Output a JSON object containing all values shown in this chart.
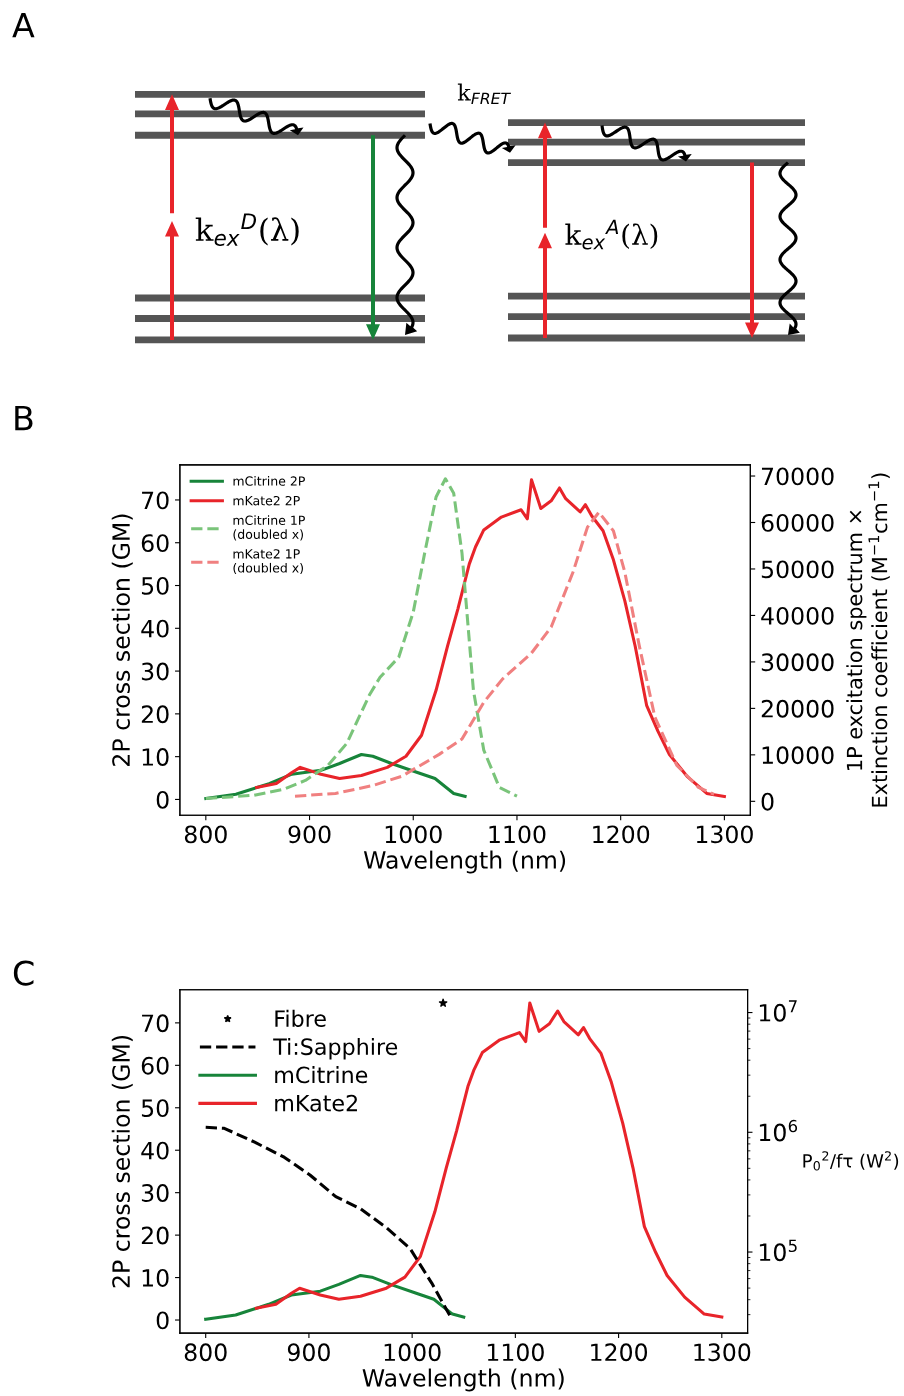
{
  "chart_data": [
    {
      "type": "other",
      "title": "A",
      "annotations": [
        "k$_{FRET}$",
        "k$_{ex}$$^{D}$(λ)",
        "k$_{ex}$$^{A}$(λ)"
      ]
    },
    {
      "type": "line",
      "title": "B",
      "xlabel": "Wavelength (nm)",
      "ylabel": "2P cross section (GM)",
      "y2label": "1P excitation spectrum ×\nExtinction coefficient (M$^{−1}$cm$^{−1}$)",
      "xlim": [
        775,
        1325
      ],
      "xticks": [
        800,
        900,
        1000,
        1100,
        1200,
        1300
      ],
      "ylim": [
        -3.7,
        78.2
      ],
      "yticks": [
        0,
        10,
        20,
        30,
        40,
        50,
        60,
        70
      ],
      "y2lim": [
        -3000,
        72400
      ],
      "y2ticks": [
        0,
        10000,
        20000,
        30000,
        40000,
        50000,
        60000,
        70000
      ],
      "legend": "top left",
      "series": [
        {
          "name": "mCitrine 2P",
          "color": "#17843a",
          "line_style": "solid",
          "x": [
            800,
            829,
            861,
            883,
            911,
            929,
            950,
            961,
            979,
            1004,
            1021,
            1039,
            1050
          ],
          "values": [
            0.2,
            1.2,
            3.7,
            5.9,
            6.8,
            8.4,
            10.5,
            10.1,
            8.4,
            6.3,
            4.9,
            1.4,
            0.7
          ]
        },
        {
          "name": "mKate2 2P",
          "color": "#e8242a",
          "line_style": "solid",
          "x": [
            849,
            868,
            883,
            891,
            911,
            929,
            950,
            975,
            993,
            1008,
            1022,
            1033,
            1043,
            1054,
            1060,
            1068,
            1085,
            1104,
            1110,
            1114,
            1123,
            1133,
            1141,
            1147,
            1161,
            1166,
            1172,
            1183,
            1193,
            1204,
            1214,
            1225,
            1236,
            1247,
            1264,
            1283,
            1300
          ],
          "values": [
            2.8,
            3.7,
            6.3,
            7.5,
            5.9,
            4.9,
            5.6,
            7.5,
            10.1,
            15,
            25.5,
            35.8,
            44.5,
            55,
            59,
            63,
            66,
            67.7,
            65.6,
            74.7,
            68,
            69.8,
            72.8,
            70.3,
            67.2,
            68.9,
            66.3,
            62.8,
            56,
            46.4,
            35.8,
            22,
            15.9,
            10.5,
            5.4,
            1.4,
            0.7
          ]
        },
        {
          "name": "mCitrine 1P\n(doubled x)",
          "color": "#7ac47a",
          "line_style": "dashed",
          "axis": "y2",
          "x": [
            800,
            846,
            875,
            896,
            918,
            936,
            958,
            968,
            986,
            1000,
            1011,
            1022,
            1031,
            1039,
            1047,
            1058,
            1068,
            1083,
            1100
          ],
          "values": [
            600,
            1300,
            2600,
            4500,
            7800,
            12500,
            23000,
            26700,
            31000,
            40700,
            53400,
            65500,
            69400,
            66300,
            53400,
            23900,
            11000,
            3000,
            1100
          ]
        },
        {
          "name": "mKate2 1P\n(doubled x)",
          "color": "#f08080",
          "line_style": "dashed",
          "axis": "y2",
          "x": [
            886,
            925,
            961,
            989,
            1025,
            1047,
            1068,
            1086,
            1114,
            1133,
            1154,
            1168,
            1179,
            1193,
            1204,
            1218,
            1233,
            1254,
            1275,
            1290
          ],
          "values": [
            1100,
            1700,
            3400,
            5400,
            10100,
            13400,
            21300,
            26300,
            31900,
            37500,
            49300,
            59000,
            62200,
            58200,
            49300,
            33400,
            18100,
            7800,
            3000,
            1500
          ]
        }
      ]
    },
    {
      "type": "line",
      "title": "C",
      "xlabel": "Wavelength (nm)",
      "ylabel": "2P cross section (GM)",
      "y2label": "P$_{0}$$^{2}$/fτ (W$^{2}$)",
      "xlim": [
        775,
        1325
      ],
      "xticks": [
        800,
        900,
        1000,
        1100,
        1200,
        1300
      ],
      "ylim": [
        -3.1,
        77.8
      ],
      "yticks": [
        0,
        10,
        20,
        30,
        40,
        50,
        60,
        70
      ],
      "log": "y2",
      "y2lim": [
        21000,
        15500000
      ],
      "y2ticks": [
        {
          "value": 100000,
          "label": "10$^{5}$"
        },
        {
          "value": 1000000,
          "label": "10$^{6}$"
        },
        {
          "value": 10000000,
          "label": "10$^{7}$"
        }
      ],
      "legend": "top left",
      "series": [
        {
          "name": "Fibre",
          "type": "scatter",
          "marker": "star",
          "color": "#000000",
          "axis": "y2",
          "x": [
            1030
          ],
          "values": [
            12000000
          ]
        },
        {
          "name": "Ti:Sapphire",
          "color": "#000000",
          "line_style": "dashed",
          "axis": "y2",
          "x": [
            800,
            818,
            847,
            876,
            901,
            926,
            950,
            975,
            998,
            1019,
            1037
          ],
          "values": [
            1100000,
            1080000,
            830000,
            620000,
            440000,
            290000,
            230000,
            160000,
            107000,
            55000,
            29000
          ]
        },
        {
          "name": "mCitrine",
          "color": "#17843a",
          "line_style": "solid",
          "x": [
            800,
            829,
            861,
            883,
            911,
            929,
            950,
            961,
            979,
            1004,
            1021,
            1039,
            1050
          ],
          "values": [
            0.2,
            1.2,
            3.7,
            5.9,
            6.8,
            8.4,
            10.5,
            10.1,
            8.4,
            6.3,
            4.9,
            1.4,
            0.7
          ]
        },
        {
          "name": "mKate2",
          "color": "#e8242a",
          "line_style": "solid",
          "x": [
            849,
            868,
            883,
            891,
            911,
            929,
            950,
            975,
            993,
            1008,
            1022,
            1033,
            1043,
            1054,
            1060,
            1068,
            1085,
            1104,
            1110,
            1114,
            1123,
            1133,
            1141,
            1147,
            1161,
            1166,
            1172,
            1183,
            1193,
            1204,
            1214,
            1225,
            1236,
            1247,
            1264,
            1283,
            1300
          ],
          "values": [
            2.8,
            3.7,
            6.3,
            7.5,
            5.9,
            4.9,
            5.6,
            7.5,
            10.1,
            15,
            25.5,
            35.8,
            44.5,
            55,
            59,
            63,
            66,
            67.7,
            65.6,
            74.7,
            68,
            69.8,
            72.8,
            70.3,
            67.2,
            68.9,
            66.3,
            62.8,
            56,
            46.4,
            35.8,
            22,
            15.9,
            10.5,
            5.4,
            1.4,
            0.7
          ]
        }
      ]
    }
  ]
}
